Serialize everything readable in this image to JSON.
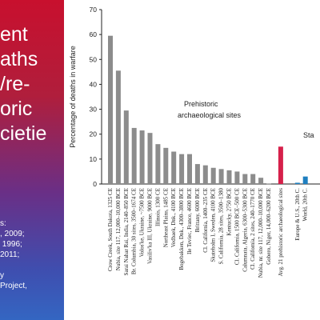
{
  "slide": {
    "title": "ent\naths\n/re-\noric\ncietie",
    "references": "s:\n, 2009;\n 1996;\n2011;\n\ny\nProject,",
    "colors": {
      "gradient_top": "#c8102e",
      "gradient_bottom": "#3466c2",
      "text": "#ffffff"
    }
  },
  "chart_data": {
    "type": "bar",
    "ylabel": "Percentage of deaths in warfare",
    "ylim": [
      0,
      70
    ],
    "yticks": [
      0,
      10,
      20,
      30,
      40,
      50,
      60,
      70
    ],
    "annotations": [
      "Prehistoric",
      "archaeological sites",
      "Sta"
    ],
    "categories": [
      "Crow Creek, South Dakota, 1325 CE",
      "Nubia, site 117, 12,000–10,000 BCE",
      "Sarai Nahar Rai, India, 2140–850 BCE",
      "Br. Columbia, 30 sites, 3500–1674 CE",
      "Volos'ke, Ukraine, ~7500 BCE",
      "Vasiliv'ka III, Ukraine, 9000 BCE",
      "Illinois, 1300 CE",
      "Northeast Plains, 1485 CE",
      "Vedbaek, Dnk., 4100 BCE",
      "Bogebakken, Dnk., 4300–3800 BCE",
      "Ile Teviec, France, 4600 BCE",
      "Brittany, 6000 BCE",
      "Cl. California, 1400–235 CE",
      "Skateholm I, Sweden, 4100 BCE",
      "S. California, 28 sites, 3500–1380",
      "Kentucky, 2750 BCE",
      "Cl. California, 1500 BCE–500 CE",
      "Calumnata, Algeria, 6300–5300 BCE",
      "Cl. California, 2 sites, 240–1770 CE",
      "Nubia, nr. site 117, 12,000–10,000 BCE",
      "Gobero, Niger, 14,000–6200 BCE",
      "Avg. 21 prehistoric archaeological sites",
      "Europe & U.S., 20th C.",
      "World, 20th C."
    ],
    "values": [
      59.5,
      45.5,
      29.5,
      22.5,
      21.5,
      20.5,
      16,
      14.5,
      13,
      12,
      12,
      8,
      7.5,
      6.5,
      6,
      5.5,
      5,
      4,
      4,
      2.5,
      0.2,
      15,
      0.5,
      3
    ],
    "bar_colors": [
      "#8c8c8c",
      "#8c8c8c",
      "#8c8c8c",
      "#8c8c8c",
      "#8c8c8c",
      "#8c8c8c",
      "#8c8c8c",
      "#8c8c8c",
      "#8c8c8c",
      "#8c8c8c",
      "#8c8c8c",
      "#8c8c8c",
      "#8c8c8c",
      "#8c8c8c",
      "#8c8c8c",
      "#8c8c8c",
      "#8c8c8c",
      "#8c8c8c",
      "#8c8c8c",
      "#8c8c8c",
      "#8c8c8c",
      "#d6204a",
      "#1f7fc0",
      "#1f7fc0"
    ],
    "grid": false,
    "legend": "none"
  }
}
